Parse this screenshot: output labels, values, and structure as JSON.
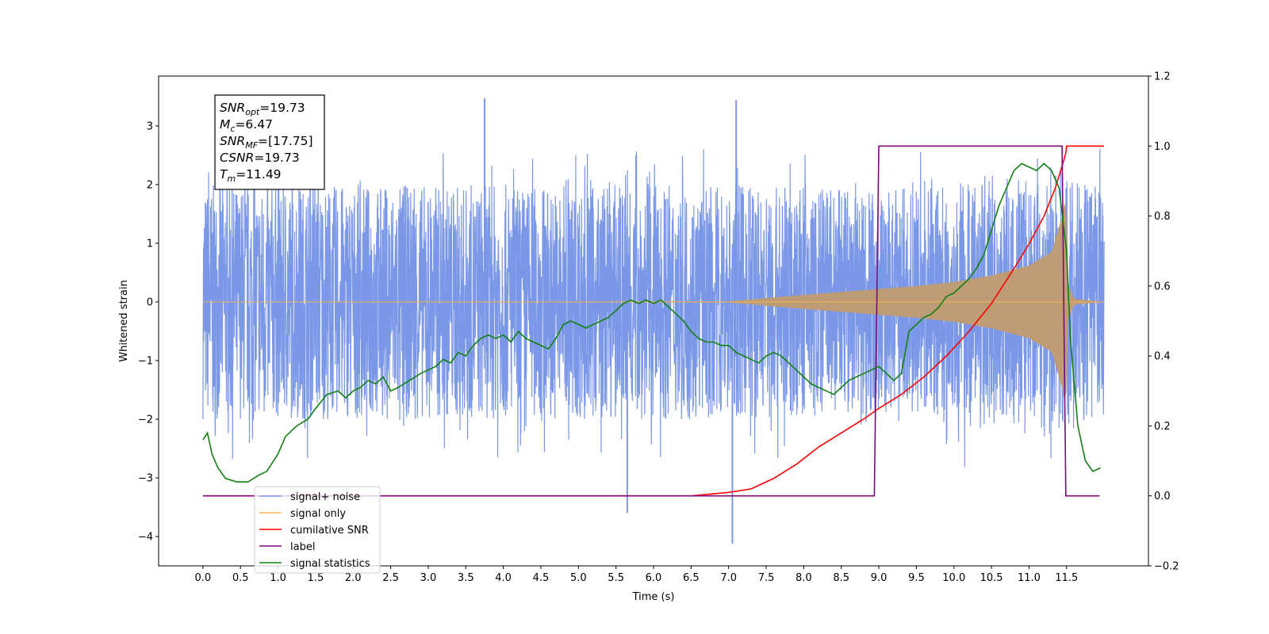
{
  "chart_data": {
    "type": "line",
    "xlabel": "Time (s)",
    "ylabel": "Whitened strain",
    "x_ticks": [
      0.0,
      0.5,
      1.0,
      1.5,
      2.0,
      2.5,
      3.0,
      3.5,
      4.0,
      4.5,
      5.0,
      5.5,
      6.0,
      6.5,
      7.0,
      7.5,
      8.0,
      8.5,
      9.0,
      9.5,
      10.0,
      10.5,
      11.0,
      11.5
    ],
    "x_tick_labels": [
      "0.0",
      "0.5",
      "1.0",
      "1.5",
      "2.0",
      "2.5",
      "3.0",
      "3.5",
      "4.0",
      "4.5",
      "5.0",
      "5.5",
      "6.0",
      "6.5",
      "7.0",
      "7.5",
      "8.0",
      "8.5",
      "9.0",
      "9.5",
      "10.0",
      "10.5",
      "11.0",
      "11.5"
    ],
    "xlim": [
      -0.59,
      12.59
    ],
    "ylim_left": [
      -4.5,
      3.85
    ],
    "y_ticks_left": [
      -4,
      -3,
      -2,
      -1,
      0,
      1,
      2,
      3
    ],
    "y_tick_labels_left": [
      "−4",
      "−3",
      "−2",
      "−1",
      "0",
      "1",
      "2",
      "3"
    ],
    "ylim_right": [
      -0.2,
      1.2
    ],
    "y_ticks_right": [
      -0.2,
      0.0,
      0.2,
      0.4,
      0.6,
      0.8,
      1.0,
      1.2
    ],
    "y_tick_labels_right": [
      "−0.2",
      "0.0",
      "0.2",
      "0.4",
      "0.6",
      "0.8",
      "1.0",
      "1.2"
    ],
    "grid": false,
    "legend_position": "bottom-left",
    "annotation": [
      {
        "base": "SNR",
        "sub": "opt",
        "value": "=19.73"
      },
      {
        "base": "M",
        "sub": "c",
        "value": "=6.47"
      },
      {
        "base": "SNR",
        "sub": "MF",
        "value": "=[17.75]"
      },
      {
        "base": "CSNR",
        "sub": "",
        "value": "=19.73"
      },
      {
        "base": "T",
        "sub": "m",
        "value": "=11.49"
      }
    ],
    "series": [
      {
        "name": "signal+ noise",
        "axis": "left",
        "color": "#7a97e8",
        "kind": "noise",
        "t_range": [
          0.0,
          12.0
        ],
        "envelope": 2.0,
        "max_peak": 3.47,
        "min_peak": -4.12
      },
      {
        "name": "signal only",
        "axis": "left",
        "color": "#f5b65a",
        "fill_color": "#bd9c76",
        "kind": "chirp",
        "t_range": [
          0.0,
          12.0
        ],
        "amplitude_envelope": {
          "x": [
            0.0,
            7.0,
            8.0,
            9.0,
            9.5,
            10.0,
            10.5,
            11.0,
            11.3,
            11.45,
            11.49,
            11.52,
            11.6,
            12.0
          ],
          "y": [
            0.0,
            0.01,
            0.12,
            0.22,
            0.27,
            0.34,
            0.45,
            0.62,
            0.85,
            1.5,
            1.85,
            0.3,
            0.05,
            0.0
          ]
        }
      },
      {
        "name": "cumilative SNR",
        "axis": "right",
        "color": "#ff0000",
        "x": [
          0.0,
          6.5,
          7.0,
          7.3,
          7.6,
          7.9,
          8.2,
          8.5,
          8.8,
          9.0,
          9.3,
          9.6,
          9.9,
          10.2,
          10.5,
          10.8,
          11.0,
          11.2,
          11.35,
          11.45,
          11.49,
          11.5,
          12.0
        ],
        "y": [
          0.0,
          0.0,
          0.01,
          0.02,
          0.05,
          0.09,
          0.14,
          0.18,
          0.22,
          0.25,
          0.29,
          0.34,
          0.4,
          0.47,
          0.55,
          0.65,
          0.72,
          0.8,
          0.88,
          0.95,
          0.98,
          1.0,
          1.0
        ]
      },
      {
        "name": "label",
        "axis": "right",
        "color": "#7b0a7b",
        "x": [
          0.0,
          8.94,
          9.0,
          11.44,
          11.49,
          11.94
        ],
        "y": [
          0.0,
          0.0,
          1.0,
          1.0,
          0.0,
          0.0
        ]
      },
      {
        "name": "signal statistics",
        "axis": "right",
        "color": "#128012",
        "x": [
          0.0,
          0.06,
          0.12,
          0.2,
          0.3,
          0.45,
          0.6,
          0.75,
          0.85,
          1.0,
          1.1,
          1.25,
          1.4,
          1.5,
          1.65,
          1.8,
          1.9,
          2.0,
          2.1,
          2.2,
          2.3,
          2.4,
          2.5,
          2.6,
          2.75,
          2.9,
          3.0,
          3.1,
          3.2,
          3.3,
          3.4,
          3.5,
          3.6,
          3.7,
          3.8,
          3.9,
          4.0,
          4.1,
          4.2,
          4.3,
          4.4,
          4.5,
          4.6,
          4.7,
          4.8,
          4.9,
          5.0,
          5.1,
          5.2,
          5.3,
          5.4,
          5.5,
          5.6,
          5.7,
          5.8,
          5.9,
          6.0,
          6.1,
          6.2,
          6.3,
          6.4,
          6.5,
          6.6,
          6.7,
          6.8,
          6.9,
          7.0,
          7.1,
          7.2,
          7.3,
          7.4,
          7.5,
          7.6,
          7.7,
          7.8,
          7.9,
          8.0,
          8.1,
          8.2,
          8.3,
          8.4,
          8.5,
          8.6,
          8.7,
          8.8,
          8.9,
          9.0,
          9.1,
          9.2,
          9.3,
          9.4,
          9.5,
          9.6,
          9.7,
          9.8,
          9.9,
          10.0,
          10.1,
          10.2,
          10.3,
          10.4,
          10.5,
          10.6,
          10.7,
          10.8,
          10.9,
          11.0,
          11.1,
          11.2,
          11.3,
          11.4,
          11.5,
          11.55,
          11.65,
          11.75,
          11.85,
          11.95
        ],
        "y": [
          0.16,
          0.18,
          0.12,
          0.08,
          0.05,
          0.04,
          0.04,
          0.06,
          0.07,
          0.12,
          0.17,
          0.2,
          0.22,
          0.25,
          0.29,
          0.3,
          0.28,
          0.3,
          0.31,
          0.33,
          0.32,
          0.34,
          0.3,
          0.31,
          0.33,
          0.35,
          0.36,
          0.37,
          0.39,
          0.38,
          0.41,
          0.4,
          0.43,
          0.45,
          0.46,
          0.45,
          0.46,
          0.44,
          0.47,
          0.45,
          0.44,
          0.43,
          0.42,
          0.45,
          0.49,
          0.5,
          0.49,
          0.48,
          0.49,
          0.5,
          0.51,
          0.53,
          0.55,
          0.56,
          0.55,
          0.56,
          0.55,
          0.56,
          0.54,
          0.52,
          0.5,
          0.47,
          0.45,
          0.44,
          0.44,
          0.43,
          0.43,
          0.41,
          0.4,
          0.39,
          0.38,
          0.4,
          0.41,
          0.4,
          0.38,
          0.36,
          0.34,
          0.32,
          0.31,
          0.3,
          0.29,
          0.31,
          0.33,
          0.34,
          0.35,
          0.36,
          0.37,
          0.35,
          0.33,
          0.35,
          0.47,
          0.49,
          0.51,
          0.52,
          0.54,
          0.57,
          0.58,
          0.6,
          0.62,
          0.65,
          0.69,
          0.76,
          0.83,
          0.88,
          0.93,
          0.95,
          0.94,
          0.93,
          0.95,
          0.93,
          0.88,
          0.7,
          0.45,
          0.2,
          0.1,
          0.07,
          0.08
        ]
      }
    ],
    "legend_entries": [
      {
        "label": "signal+ noise",
        "color": "#7a97e8"
      },
      {
        "label": "signal only",
        "color": "#f5b65a"
      },
      {
        "label": "cumilative SNR",
        "color": "#ff0000"
      },
      {
        "label": "label",
        "color": "#7b0a7b"
      },
      {
        "label": "signal statistics",
        "color": "#128012"
      }
    ]
  }
}
